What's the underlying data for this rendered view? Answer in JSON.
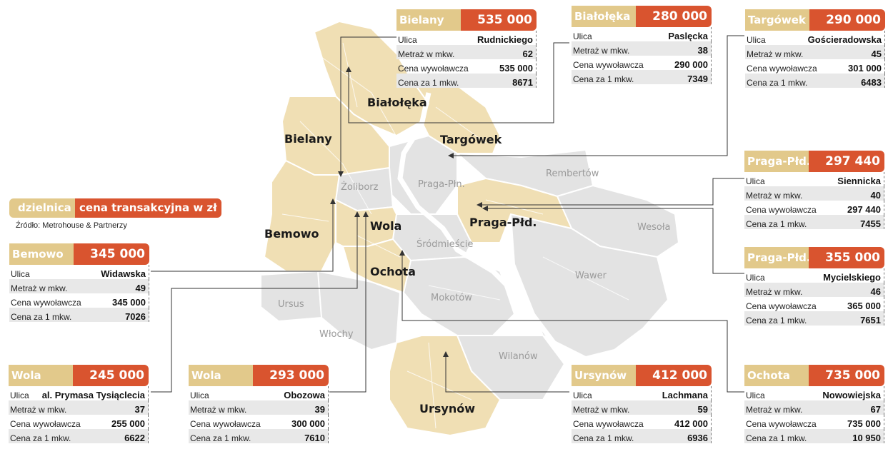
{
  "legend": {
    "district": "dzielnica",
    "price": "cena transakcyjna w zł"
  },
  "source": "Źródło: Metrohouse & Partnerzy",
  "districts": {
    "bialoleka": "Białołęka",
    "bielany": "Bielany",
    "targowek": "Targówek",
    "zoliborz": "Żoliborz",
    "praga_pln": "Praga-Płn.",
    "rembertow": "Rembertów",
    "bemowo": "Bemowo",
    "wola": "Wola",
    "praga_pld": "Praga-Płd.",
    "srodmiescie": "Śródmieście",
    "wesola": "Wesoła",
    "ochota": "Ochota",
    "wawer": "Wawer",
    "ursus": "Ursus",
    "mokotow": "Mokotów",
    "wlochy": "Włochy",
    "wilanow": "Wilanów",
    "ursynow": "Ursynów"
  },
  "labels": {
    "street": "Ulica",
    "area": "Metraż w mkw.",
    "asking": "Cena wywoławcza",
    "per_m": "Cena za 1 mkw."
  },
  "listings": [
    {
      "district": "Bielany",
      "price": "535 000",
      "street": "Rudnickiego",
      "area": "62",
      "asking": "535 000",
      "per_m": "8671"
    },
    {
      "district": "Białołęka",
      "price": "280 000",
      "street": "Paslęcka",
      "area": "38",
      "asking": "290 000",
      "per_m": "7349"
    },
    {
      "district": "Targówek",
      "price": "290 000",
      "street": "Gościeradowska",
      "area": "45",
      "asking": "301 000",
      "per_m": "6483"
    },
    {
      "district": "Praga-Płd.",
      "price": "297 440",
      "street": "Siennicka",
      "area": "40",
      "asking": "297 440",
      "per_m": "7455"
    },
    {
      "district": "Praga-Płd.",
      "price": "355 000",
      "street": "Mycielskiego",
      "area": "46",
      "asking": "365 000",
      "per_m": "7651"
    },
    {
      "district": "Bemowo",
      "price": "345 000",
      "street": "Widawska",
      "area": "49",
      "asking": "345 000",
      "per_m": "7026"
    },
    {
      "district": "Wola",
      "price": "245 000",
      "street": "al. Prymasa Tysiąclecia",
      "area": "37",
      "asking": "255 000",
      "per_m": "6622"
    },
    {
      "district": "Wola",
      "price": "293 000",
      "street": "Obozowa",
      "area": "39",
      "asking": "300 000",
      "per_m": "7610"
    },
    {
      "district": "Ursynów",
      "price": "412 000",
      "street": "Lachmana",
      "area": "59",
      "asking": "412 000",
      "per_m": "6936"
    },
    {
      "district": "Ochota",
      "price": "735 000",
      "street": "Nowowiejska",
      "area": "67",
      "asking": "735 000",
      "per_m": "10 950"
    }
  ],
  "colors": {
    "highlight": "#f0dfb4",
    "grey": "#e3e3e3",
    "header_district": "#e2c98b",
    "header_price": "#d9542f"
  }
}
